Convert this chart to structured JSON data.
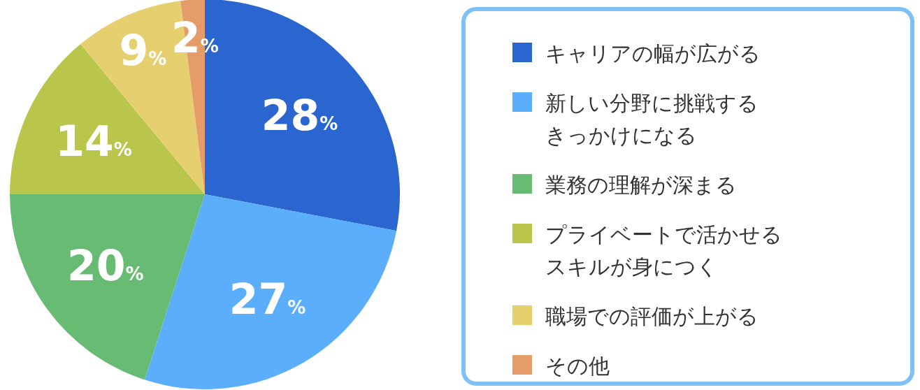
{
  "chart_data": {
    "type": "pie",
    "categories": [
      "キャリアの幅が広がる",
      "新しい分野に挑戦するきっかけになる",
      "業務の理解が深まる",
      "プライベートで活かせるスキルが身につく",
      "職場での評価が上がる",
      "その他"
    ],
    "values": [
      28,
      27,
      20,
      14,
      9,
      2
    ],
    "value_labels": [
      "28%",
      "27%",
      "20%",
      "14%",
      "9%",
      "2%"
    ],
    "colors": [
      "#2b66d0",
      "#5aaefc",
      "#67bb72",
      "#b9c54b",
      "#e5cf6f",
      "#e59c68"
    ],
    "legend": "right"
  }
}
